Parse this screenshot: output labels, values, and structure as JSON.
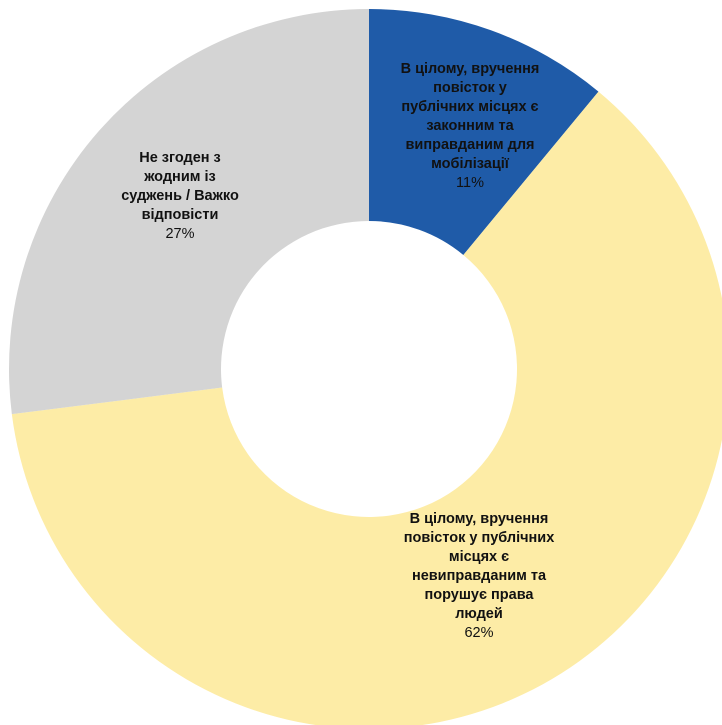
{
  "chart_data": {
    "type": "pie",
    "donut": true,
    "title": "",
    "start_angle_deg": 0,
    "slices": [
      {
        "label_lines": [
          "В цілому, вручення",
          "повісток у",
          "публічних місцях є",
          "законним та",
          "виправданим для",
          "мобілізації"
        ],
        "value": 11,
        "value_label": "11%",
        "color": "#1f5ba8",
        "text_color": "#ffffff"
      },
      {
        "label_lines": [
          "В цілому, вручення",
          "повісток у публічних",
          "місцях є",
          "невиправданим та",
          "порушує права",
          "людей"
        ],
        "value": 62,
        "value_label": "62%",
        "color": "#fdeca6",
        "text_color": "#111111"
      },
      {
        "label_lines": [
          "Не згоден з",
          "жодним із",
          "суджень / Важко",
          "відповісти"
        ],
        "value": 27,
        "value_label": "27%",
        "color": "#d4d4d4",
        "text_color": "#111111"
      }
    ],
    "legend": "none"
  }
}
